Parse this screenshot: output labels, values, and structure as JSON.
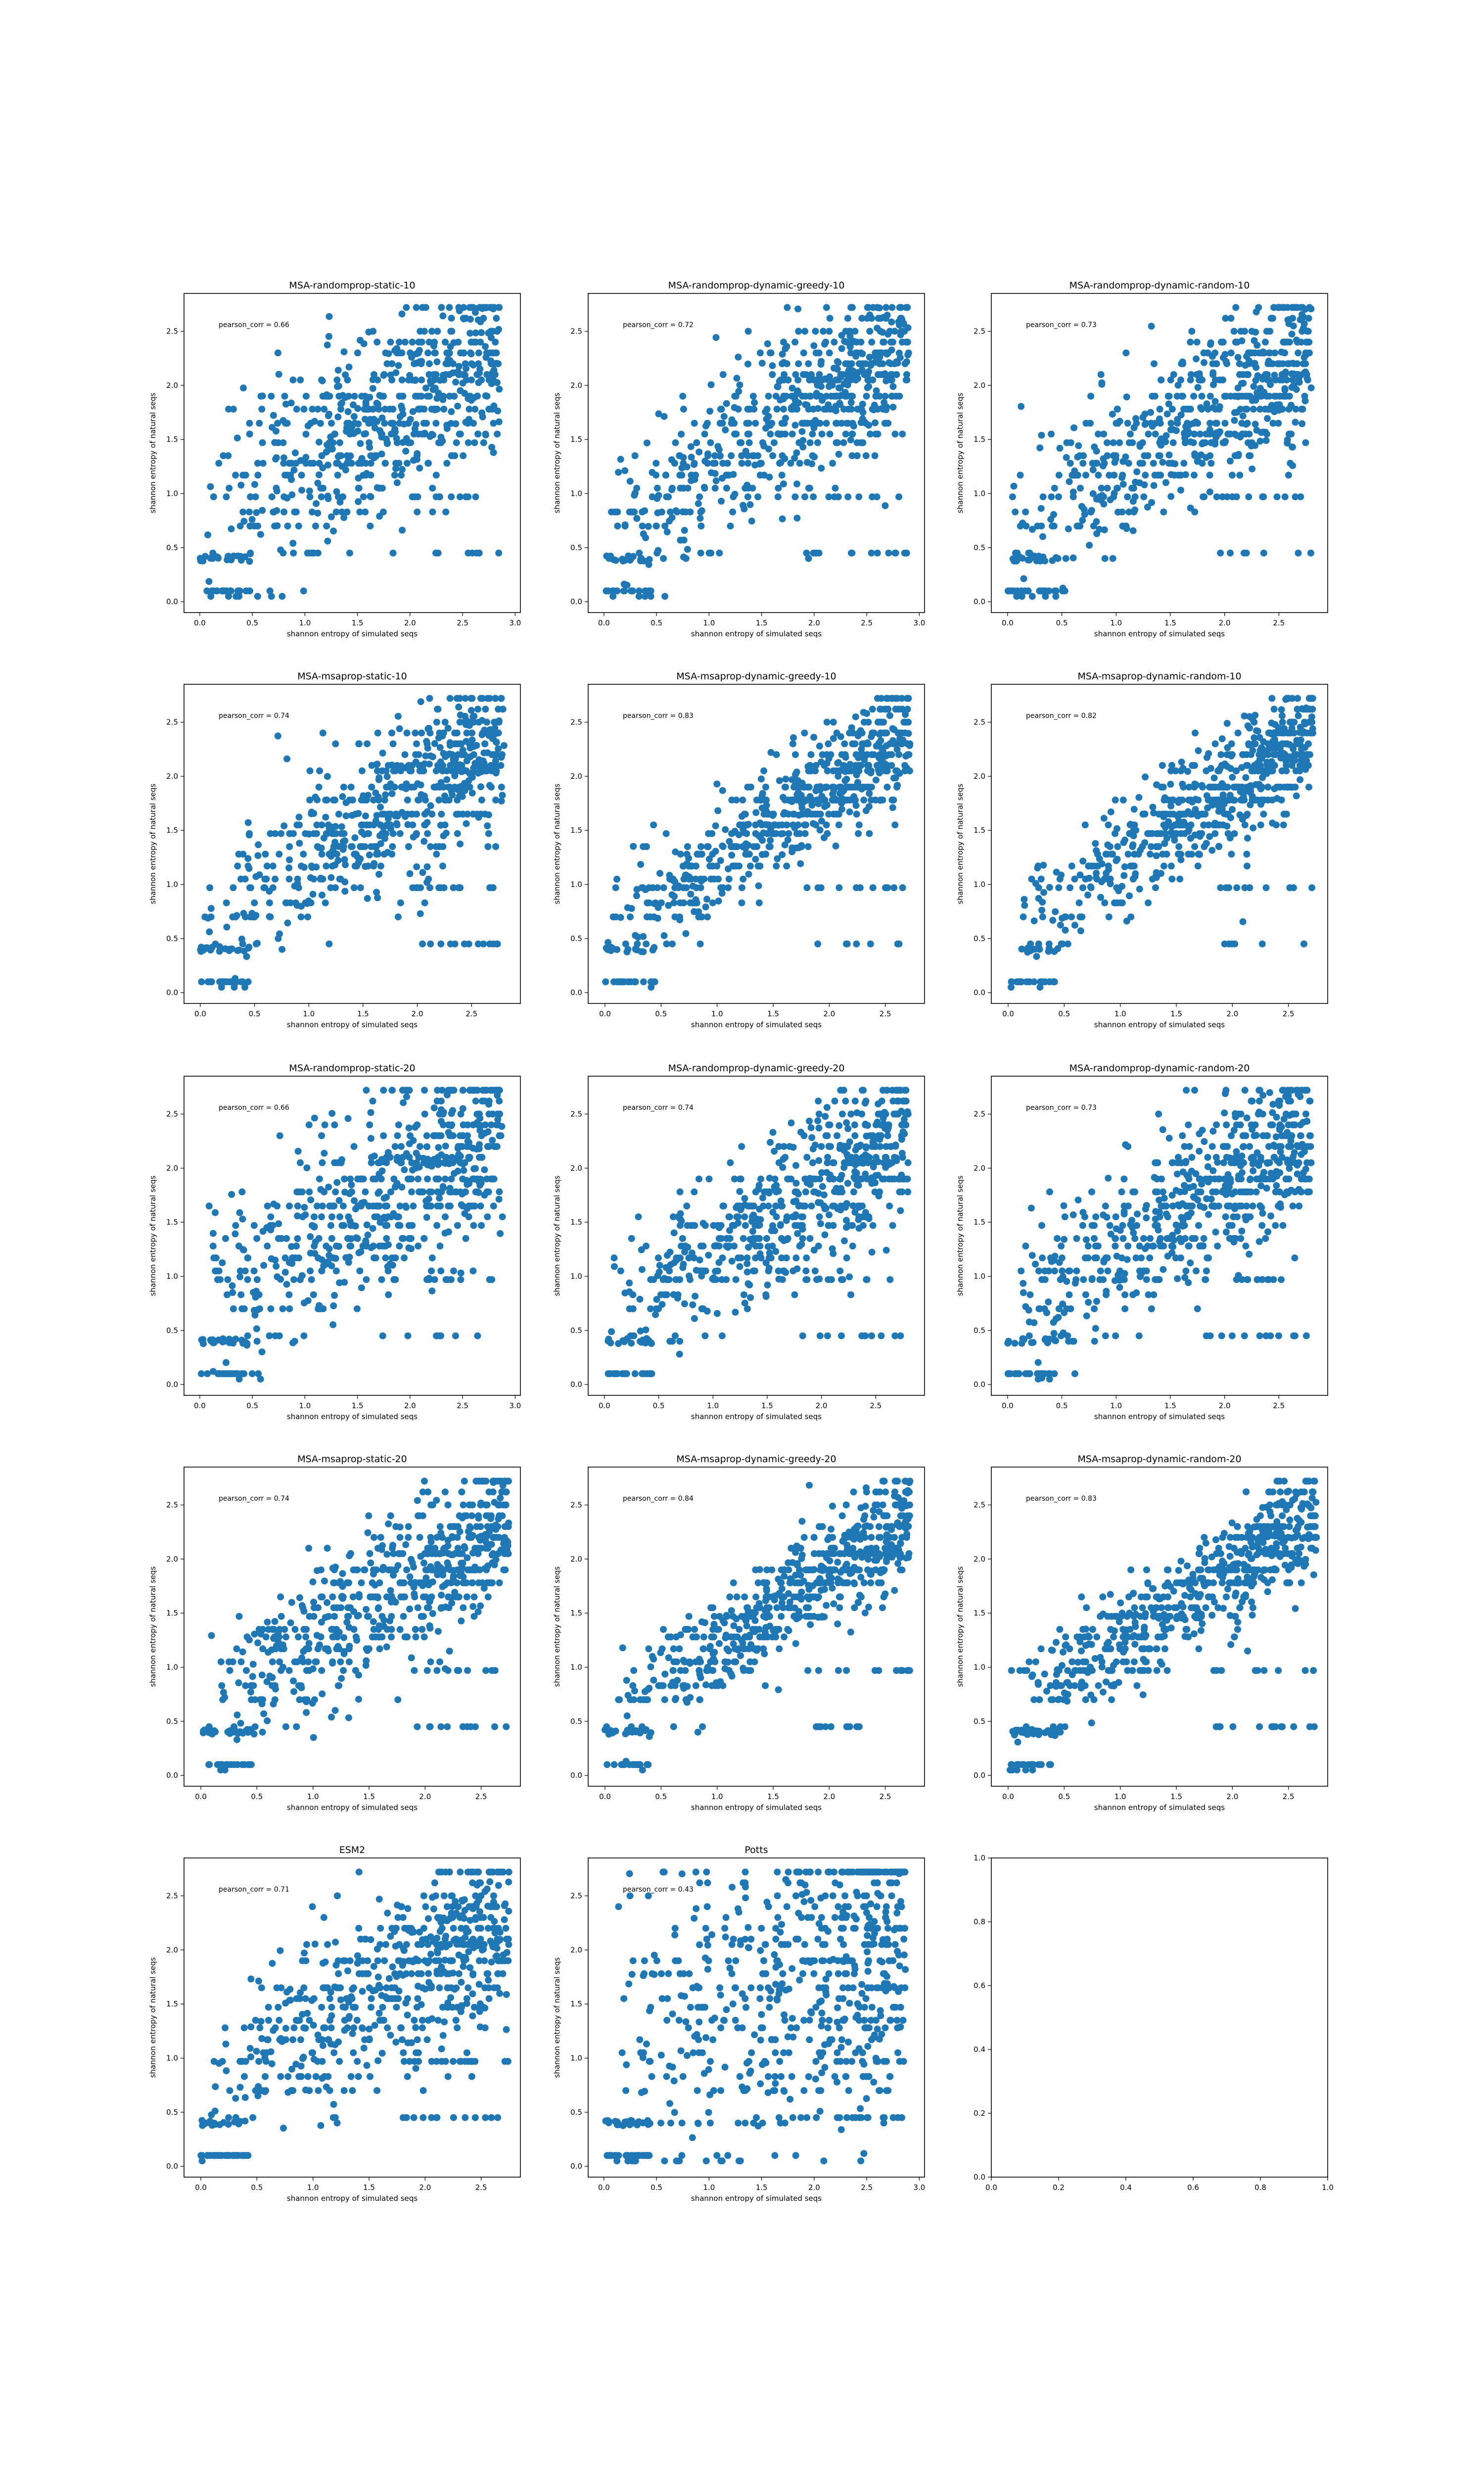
{
  "figure": {
    "point_color": "#1f77b4"
  },
  "chart_data": [
    {
      "type": "scatter",
      "title": "MSA-randomprop-static-10",
      "xlabel": "shannon entropy of simulated seqs",
      "ylabel": "shannon entropy of natural seqs",
      "annotation": "pearson_corr = 0.66",
      "corr": 0.66,
      "xlim": [
        -0.15,
        3.05
      ],
      "ylim": [
        -0.1,
        2.85
      ],
      "xticks": [
        "0.0",
        "0.5",
        "1.0",
        "1.5",
        "2.0",
        "2.5",
        "3.0"
      ],
      "yticks": [
        "0.0",
        "0.5",
        "1.0",
        "1.5",
        "2.0",
        "2.5"
      ],
      "x_max": 2.85,
      "n_points": 700,
      "seed": 11
    },
    {
      "type": "scatter",
      "title": "MSA-randomprop-dynamic-greedy-10",
      "xlabel": "shannon entropy of simulated seqs",
      "ylabel": "shannon entropy of natural seqs",
      "annotation": "pearson_corr = 0.72",
      "corr": 0.72,
      "xlim": [
        -0.15,
        3.05
      ],
      "ylim": [
        -0.1,
        2.85
      ],
      "xticks": [
        "0.0",
        "0.5",
        "1.0",
        "1.5",
        "2.0",
        "2.5",
        "3.0"
      ],
      "yticks": [
        "0.0",
        "0.5",
        "1.0",
        "1.5",
        "2.0",
        "2.5"
      ],
      "x_max": 2.9,
      "n_points": 700,
      "seed": 12
    },
    {
      "type": "scatter",
      "title": "MSA-randomprop-dynamic-random-10",
      "xlabel": "shannon entropy of simulated seqs",
      "ylabel": "shannon entropy of natural seqs",
      "annotation": "pearson_corr = 0.73",
      "corr": 0.73,
      "xlim": [
        -0.15,
        2.95
      ],
      "ylim": [
        -0.1,
        2.85
      ],
      "xticks": [
        "0.0",
        "0.5",
        "1.0",
        "1.5",
        "2.0",
        "2.5"
      ],
      "yticks": [
        "0.0",
        "0.5",
        "1.0",
        "1.5",
        "2.0",
        "2.5"
      ],
      "x_max": 2.8,
      "n_points": 700,
      "seed": 13
    },
    {
      "type": "scatter",
      "title": "MSA-msaprop-static-10",
      "xlabel": "shannon entropy of simulated seqs",
      "ylabel": "shannon entropy of natural seqs",
      "annotation": "pearson_corr = 0.74",
      "corr": 0.74,
      "xlim": [
        -0.15,
        2.95
      ],
      "ylim": [
        -0.1,
        2.85
      ],
      "xticks": [
        "0.0",
        "0.5",
        "1.0",
        "1.5",
        "2.0",
        "2.5"
      ],
      "yticks": [
        "0.0",
        "0.5",
        "1.0",
        "1.5",
        "2.0",
        "2.5"
      ],
      "x_max": 2.8,
      "n_points": 700,
      "seed": 14
    },
    {
      "type": "scatter",
      "title": "MSA-msaprop-dynamic-greedy-10",
      "xlabel": "shannon entropy of simulated seqs",
      "ylabel": "shannon entropy of natural seqs",
      "annotation": "pearson_corr = 0.83",
      "corr": 0.83,
      "xlim": [
        -0.15,
        2.85
      ],
      "ylim": [
        -0.1,
        2.85
      ],
      "xticks": [
        "0.0",
        "0.5",
        "1.0",
        "1.5",
        "2.0",
        "2.5"
      ],
      "yticks": [
        "0.0",
        "0.5",
        "1.0",
        "1.5",
        "2.0",
        "2.5"
      ],
      "x_max": 2.72,
      "n_points": 700,
      "seed": 15
    },
    {
      "type": "scatter",
      "title": "MSA-msaprop-dynamic-random-10",
      "xlabel": "shannon entropy of simulated seqs",
      "ylabel": "shannon entropy of natural seqs",
      "annotation": "pearson_corr = 0.82",
      "corr": 0.82,
      "xlim": [
        -0.15,
        2.85
      ],
      "ylim": [
        -0.1,
        2.85
      ],
      "xticks": [
        "0.0",
        "0.5",
        "1.0",
        "1.5",
        "2.0",
        "2.5"
      ],
      "yticks": [
        "0.0",
        "0.5",
        "1.0",
        "1.5",
        "2.0",
        "2.5"
      ],
      "x_max": 2.72,
      "n_points": 700,
      "seed": 16
    },
    {
      "type": "scatter",
      "title": "MSA-randomprop-static-20",
      "xlabel": "shannon entropy of simulated seqs",
      "ylabel": "shannon entropy of natural seqs",
      "annotation": "pearson_corr = 0.66",
      "corr": 0.66,
      "xlim": [
        -0.15,
        3.05
      ],
      "ylim": [
        -0.1,
        2.85
      ],
      "xticks": [
        "0.0",
        "0.5",
        "1.0",
        "1.5",
        "2.0",
        "2.5",
        "3.0"
      ],
      "yticks": [
        "0.0",
        "0.5",
        "1.0",
        "1.5",
        "2.0",
        "2.5"
      ],
      "x_max": 2.88,
      "n_points": 700,
      "seed": 17
    },
    {
      "type": "scatter",
      "title": "MSA-randomprop-dynamic-greedy-20",
      "xlabel": "shannon entropy of simulated seqs",
      "ylabel": "shannon entropy of natural seqs",
      "annotation": "pearson_corr = 0.74",
      "corr": 0.74,
      "xlim": [
        -0.15,
        2.95
      ],
      "ylim": [
        -0.1,
        2.85
      ],
      "xticks": [
        "0.0",
        "0.5",
        "1.0",
        "1.5",
        "2.0",
        "2.5"
      ],
      "yticks": [
        "0.0",
        "0.5",
        "1.0",
        "1.5",
        "2.0",
        "2.5"
      ],
      "x_max": 2.8,
      "n_points": 700,
      "seed": 18
    },
    {
      "type": "scatter",
      "title": "MSA-randomprop-dynamic-random-20",
      "xlabel": "shannon entropy of simulated seqs",
      "ylabel": "shannon entropy of natural seqs",
      "annotation": "pearson_corr = 0.73",
      "corr": 0.73,
      "xlim": [
        -0.15,
        2.95
      ],
      "ylim": [
        -0.1,
        2.85
      ],
      "xticks": [
        "0.0",
        "0.5",
        "1.0",
        "1.5",
        "2.0",
        "2.5"
      ],
      "yticks": [
        "0.0",
        "0.5",
        "1.0",
        "1.5",
        "2.0",
        "2.5"
      ],
      "x_max": 2.8,
      "n_points": 700,
      "seed": 19
    },
    {
      "type": "scatter",
      "title": "MSA-msaprop-static-20",
      "xlabel": "shannon entropy of simulated seqs",
      "ylabel": "shannon entropy of natural seqs",
      "annotation": "pearson_corr = 0.74",
      "corr": 0.74,
      "xlim": [
        -0.15,
        2.85
      ],
      "ylim": [
        -0.1,
        2.85
      ],
      "xticks": [
        "0.0",
        "0.5",
        "1.0",
        "1.5",
        "2.0",
        "2.5"
      ],
      "yticks": [
        "0.0",
        "0.5",
        "1.0",
        "1.5",
        "2.0",
        "2.5"
      ],
      "x_max": 2.75,
      "n_points": 700,
      "seed": 20
    },
    {
      "type": "scatter",
      "title": "MSA-msaprop-dynamic-greedy-20",
      "xlabel": "shannon entropy of simulated seqs",
      "ylabel": "shannon entropy of natural seqs",
      "annotation": "pearson_corr = 0.84",
      "corr": 0.84,
      "xlim": [
        -0.15,
        2.85
      ],
      "ylim": [
        -0.1,
        2.85
      ],
      "xticks": [
        "0.0",
        "0.5",
        "1.0",
        "1.5",
        "2.0",
        "2.5"
      ],
      "yticks": [
        "0.0",
        "0.5",
        "1.0",
        "1.5",
        "2.0",
        "2.5"
      ],
      "x_max": 2.72,
      "n_points": 700,
      "seed": 21
    },
    {
      "type": "scatter",
      "title": "MSA-msaprop-dynamic-random-20",
      "xlabel": "shannon entropy of simulated seqs",
      "ylabel": "shannon entropy of natural seqs",
      "annotation": "pearson_corr = 0.83",
      "corr": 0.83,
      "xlim": [
        -0.15,
        2.85
      ],
      "ylim": [
        -0.1,
        2.85
      ],
      "xticks": [
        "0.0",
        "0.5",
        "1.0",
        "1.5",
        "2.0",
        "2.5"
      ],
      "yticks": [
        "0.0",
        "0.5",
        "1.0",
        "1.5",
        "2.0",
        "2.5"
      ],
      "x_max": 2.75,
      "n_points": 700,
      "seed": 22
    },
    {
      "type": "scatter",
      "title": "ESM2",
      "xlabel": "shannon entropy of simulated seqs",
      "ylabel": "shannon entropy of natural seqs",
      "annotation": "pearson_corr = 0.71",
      "corr": 0.71,
      "xlim": [
        -0.15,
        2.85
      ],
      "ylim": [
        -0.1,
        2.85
      ],
      "xticks": [
        "0.0",
        "0.5",
        "1.0",
        "1.5",
        "2.0",
        "2.5"
      ],
      "yticks": [
        "0.0",
        "0.5",
        "1.0",
        "1.5",
        "2.0",
        "2.5"
      ],
      "x_max": 2.75,
      "n_points": 700,
      "seed": 23
    },
    {
      "type": "scatter",
      "title": "Potts",
      "xlabel": "shannon entropy of simulated seqs",
      "ylabel": "shannon entropy of natural seqs",
      "annotation": "pearson_corr = 0.43",
      "corr": 0.43,
      "xlim": [
        -0.15,
        3.05
      ],
      "ylim": [
        -0.1,
        2.85
      ],
      "xticks": [
        "0.0",
        "0.5",
        "1.0",
        "1.5",
        "2.0",
        "2.5",
        "3.0"
      ],
      "yticks": [
        "0.0",
        "0.5",
        "1.0",
        "1.5",
        "2.0",
        "2.5"
      ],
      "x_max": 2.88,
      "n_points": 700,
      "seed": 24
    },
    {
      "type": "scatter",
      "title": "",
      "xlabel": "",
      "ylabel": "",
      "annotation": "",
      "empty": true,
      "xlim": [
        0,
        1
      ],
      "ylim": [
        0,
        1
      ],
      "xticks": [
        "0.0",
        "0.2",
        "0.4",
        "0.6",
        "0.8",
        "1.0"
      ],
      "yticks": [
        "0.0",
        "0.2",
        "0.4",
        "0.6",
        "0.8",
        "1.0"
      ]
    }
  ]
}
